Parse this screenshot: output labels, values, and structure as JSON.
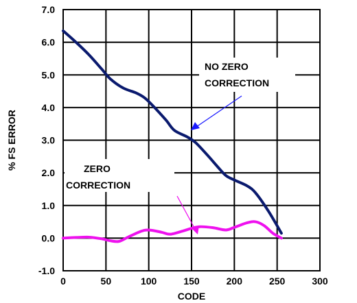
{
  "chart_data": {
    "type": "line",
    "title": "",
    "xlabel": "CODE",
    "ylabel": "% FS ERROR",
    "xlim": [
      0,
      300
    ],
    "ylim": [
      -1.0,
      7.0
    ],
    "x_ticks": [
      "0",
      "50",
      "100",
      "150",
      "200",
      "250",
      "300"
    ],
    "y_ticks": [
      "-1.0",
      "0.0",
      "1.0",
      "2.0",
      "3.0",
      "4.0",
      "5.0",
      "6.0",
      "7.0"
    ],
    "grid": true,
    "series": [
      {
        "label": "NO ZERO CORRECTION",
        "color": "#0a1a6e",
        "x": [
          0,
          15,
          30,
          45,
          55,
          70,
          85,
          95,
          105,
          120,
          130,
          145,
          155,
          170,
          180,
          190,
          200,
          215,
          225,
          240,
          255
        ],
        "y": [
          6.35,
          6.0,
          5.62,
          5.18,
          4.88,
          4.6,
          4.45,
          4.3,
          4.05,
          3.62,
          3.3,
          3.1,
          2.92,
          2.5,
          2.2,
          1.92,
          1.78,
          1.6,
          1.38,
          0.82,
          0.15
        ]
      },
      {
        "label": "ZERO CORRECTION",
        "color": "#ee11ee",
        "x": [
          0,
          15,
          30,
          45,
          55,
          65,
          75,
          90,
          100,
          115,
          125,
          140,
          150,
          160,
          175,
          190,
          200,
          215,
          225,
          235,
          245,
          255
        ],
        "y": [
          0.0,
          0.02,
          0.03,
          -0.02,
          -0.08,
          -0.1,
          0.02,
          0.2,
          0.25,
          0.18,
          0.12,
          0.22,
          0.3,
          0.35,
          0.32,
          0.25,
          0.33,
          0.47,
          0.5,
          0.38,
          0.15,
          0.0
        ]
      }
    ],
    "annotations": [
      {
        "id": "no-zero",
        "lines": [
          "NO ZERO",
          "CORRECTION"
        ]
      },
      {
        "id": "zero",
        "lines": [
          "ZERO",
          "CORRECTION"
        ]
      }
    ]
  }
}
